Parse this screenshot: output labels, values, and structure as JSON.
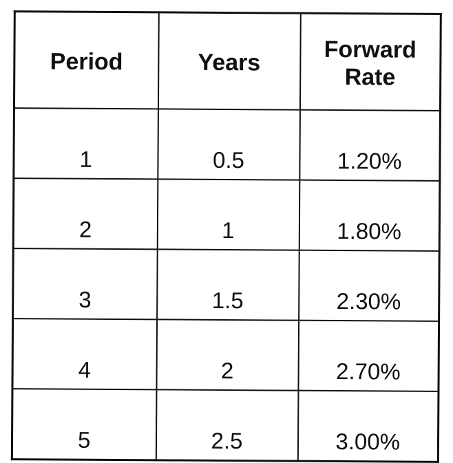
{
  "table": {
    "headers": {
      "period": "Period",
      "years": "Years",
      "forward_rate_line1": "Forward",
      "forward_rate_line2": "Rate"
    },
    "rows": [
      {
        "period": "1",
        "years": "0.5",
        "forward_rate": "1.20%"
      },
      {
        "period": "2",
        "years": "1",
        "forward_rate": "1.80%"
      },
      {
        "period": "3",
        "years": "1.5",
        "forward_rate": "2.30%"
      },
      {
        "period": "4",
        "years": "2",
        "forward_rate": "2.70%"
      },
      {
        "period": "5",
        "years": "2.5",
        "forward_rate": "3.00%"
      }
    ]
  },
  "chart_data": {
    "type": "table",
    "columns": [
      "Period",
      "Years",
      "Forward Rate"
    ],
    "rows": [
      [
        "1",
        "0.5",
        "1.20%"
      ],
      [
        "2",
        "1",
        "1.80%"
      ],
      [
        "3",
        "1.5",
        "2.30%"
      ],
      [
        "4",
        "2",
        "2.70%"
      ],
      [
        "5",
        "2.5",
        "3.00%"
      ]
    ]
  }
}
